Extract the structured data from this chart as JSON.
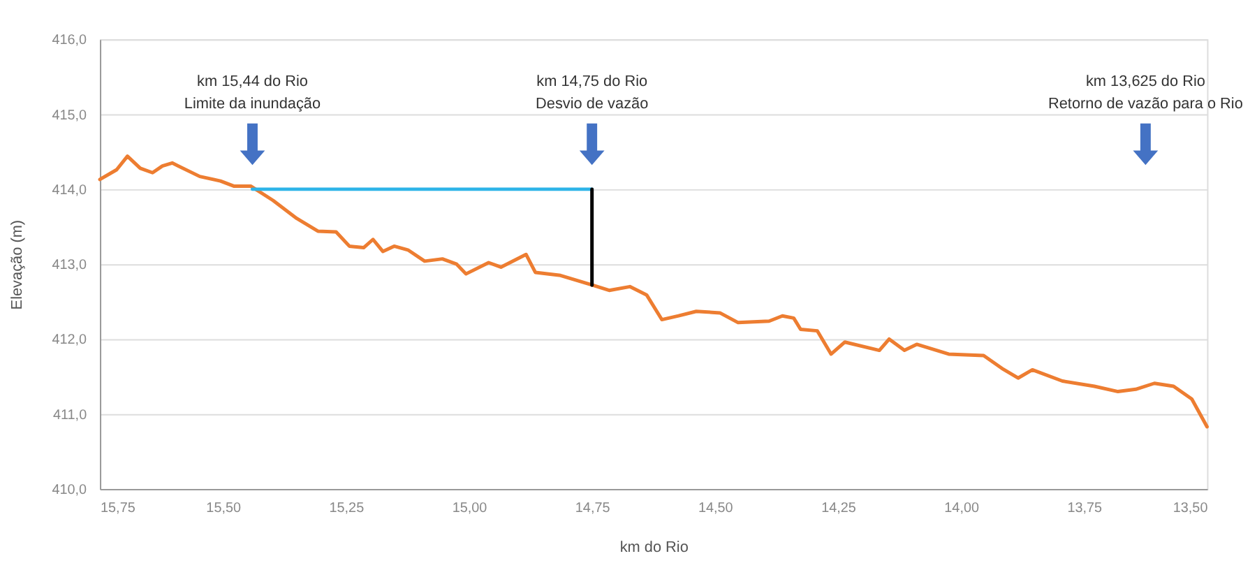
{
  "chart_data": {
    "type": "line",
    "xlabel": "km do Rio",
    "ylabel": "Elevação (m)",
    "xlim": [
      15.75,
      13.5
    ],
    "xticks": [
      {
        "value": 15.75,
        "label": "15,75"
      },
      {
        "value": 15.5,
        "label": "15,50"
      },
      {
        "value": 15.25,
        "label": "15,25"
      },
      {
        "value": 15.0,
        "label": "15,00"
      },
      {
        "value": 14.75,
        "label": "14,75"
      },
      {
        "value": 14.5,
        "label": "14,50"
      },
      {
        "value": 14.25,
        "label": "14,25"
      },
      {
        "value": 14.0,
        "label": "14,00"
      },
      {
        "value": 13.75,
        "label": "13,75"
      },
      {
        "value": 13.5,
        "label": "13,50"
      }
    ],
    "ylim": [
      410,
      416
    ],
    "yticks": [
      {
        "value": 410,
        "label": "410,0"
      },
      {
        "value": 411,
        "label": "411,0"
      },
      {
        "value": 412,
        "label": "412,0"
      },
      {
        "value": 413,
        "label": "413,0"
      },
      {
        "value": 414,
        "label": "414,0"
      },
      {
        "value": 415,
        "label": "415,0"
      },
      {
        "value": 416,
        "label": "416,0"
      }
    ],
    "grid": "y",
    "legend": false,
    "marker": "none",
    "line_style": "solid",
    "series": [
      {
        "color": "#ed7d31",
        "x": [
          15.75,
          15.716,
          15.694,
          15.668,
          15.643,
          15.623,
          15.603,
          15.547,
          15.505,
          15.477,
          15.443,
          15.398,
          15.35,
          15.307,
          15.27,
          15.243,
          15.214,
          15.195,
          15.175,
          15.152,
          15.124,
          15.09,
          15.054,
          15.025,
          15.006,
          14.96,
          14.935,
          14.884,
          14.865,
          14.814,
          14.749,
          14.715,
          14.673,
          14.639,
          14.608,
          14.574,
          14.538,
          14.49,
          14.453,
          14.39,
          14.363,
          14.34,
          14.326,
          14.292,
          14.264,
          14.236,
          14.166,
          14.146,
          14.115,
          14.09,
          14.025,
          13.954,
          13.917,
          13.884,
          13.855,
          13.794,
          13.729,
          13.681,
          13.645,
          13.607,
          13.568,
          13.531,
          13.5
        ],
        "values": [
          414.13,
          414.26,
          414.44,
          414.28,
          414.22,
          414.31,
          414.35,
          414.17,
          414.11,
          414.04,
          414.04,
          413.85,
          413.61,
          413.44,
          413.43,
          413.24,
          413.22,
          413.33,
          413.17,
          413.24,
          413.19,
          413.04,
          413.07,
          413.0,
          412.87,
          413.02,
          412.96,
          413.13,
          412.89,
          412.85,
          412.72,
          412.65,
          412.7,
          412.59,
          412.26,
          412.31,
          412.37,
          412.35,
          412.22,
          412.24,
          412.31,
          412.28,
          412.13,
          412.11,
          411.8,
          411.96,
          411.85,
          412.0,
          411.85,
          411.93,
          411.8,
          411.78,
          411.61,
          411.48,
          411.59,
          411.44,
          411.37,
          411.3,
          411.33,
          411.41,
          411.37,
          411.2,
          410.83
        ]
      },
      {
        "type": "line",
        "color": "#2eb4e8",
        "x": [
          15.44,
          14.75
        ],
        "values": [
          414.0,
          414.0
        ]
      },
      {
        "type": "line",
        "color": "#000000",
        "x": [
          14.75,
          14.75
        ],
        "values": [
          412.72,
          414.0
        ]
      },
      {
        "type": "scatter",
        "marker": "triangle",
        "color": "#4472c4",
        "x": [
          15.44,
          14.75,
          13.625
        ],
        "values": [
          414.6,
          414.6,
          414.6
        ]
      }
    ],
    "annotations": [
      "km 15,44 do Rio\nLimite da inundação",
      "km 14,75 do Rio\nDesvio de vazão",
      "km 13,625 do Rio\nRetorno de vazão para o Rio"
    ]
  }
}
